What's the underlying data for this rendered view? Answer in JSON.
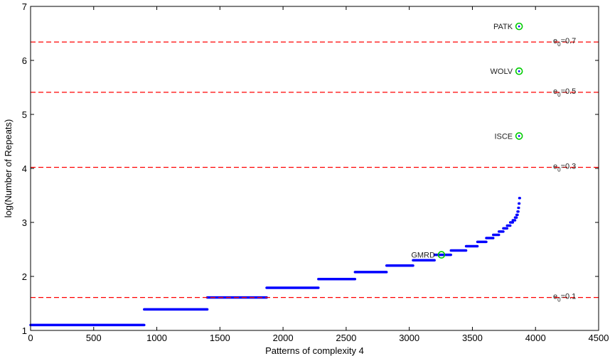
{
  "chart_data": {
    "type": "scatter",
    "xlabel": "Patterns of complexity 4",
    "ylabel": "log(Number of Repeats)",
    "xlim": [
      0,
      4500
    ],
    "ylim": [
      1,
      7
    ],
    "xticks": [
      "0",
      "500",
      "1000",
      "1500",
      "2000",
      "2500",
      "3000",
      "3500",
      "4000",
      "4500"
    ],
    "yticks": [
      "1",
      "2",
      "3",
      "4",
      "5",
      "6",
      "7"
    ],
    "grid": false,
    "colors": {
      "series": "#0000ff",
      "threshold": "#ff0000",
      "highlight": "#00cc00"
    },
    "steps": [
      {
        "x0": 0,
        "x1": 900,
        "y": 1.1
      },
      {
        "x0": 900,
        "x1": 1400,
        "y": 1.39
      },
      {
        "x0": 1400,
        "x1": 1870,
        "y": 1.61
      },
      {
        "x0": 1870,
        "x1": 2280,
        "y": 1.79
      },
      {
        "x0": 2280,
        "x1": 2570,
        "y": 1.95
      },
      {
        "x0": 2570,
        "x1": 2820,
        "y": 2.08
      },
      {
        "x0": 2820,
        "x1": 3030,
        "y": 2.2
      },
      {
        "x0": 3030,
        "x1": 3200,
        "y": 2.3
      },
      {
        "x0": 3200,
        "x1": 3330,
        "y": 2.4
      },
      {
        "x0": 3330,
        "x1": 3450,
        "y": 2.48
      },
      {
        "x0": 3450,
        "x1": 3540,
        "y": 2.56
      },
      {
        "x0": 3540,
        "x1": 3610,
        "y": 2.64
      },
      {
        "x0": 3610,
        "x1": 3665,
        "y": 2.71
      },
      {
        "x0": 3665,
        "x1": 3710,
        "y": 2.77
      },
      {
        "x0": 3710,
        "x1": 3745,
        "y": 2.83
      },
      {
        "x0": 3745,
        "x1": 3775,
        "y": 2.89
      },
      {
        "x0": 3775,
        "x1": 3800,
        "y": 2.94
      },
      {
        "x0": 3800,
        "x1": 3820,
        "y": 3.0
      },
      {
        "x0": 3820,
        "x1": 3838,
        "y": 3.04
      },
      {
        "x0": 3838,
        "x1": 3850,
        "y": 3.09
      },
      {
        "x0": 3850,
        "x1": 3858,
        "y": 3.14
      },
      {
        "x0": 3858,
        "x1": 3864,
        "y": 3.2
      },
      {
        "x0": 3864,
        "x1": 3868,
        "y": 3.27
      },
      {
        "x0": 3868,
        "x1": 3872,
        "y": 3.35
      },
      {
        "x0": 3872,
        "x1": 3876,
        "y": 3.45
      }
    ],
    "thresholds": [
      {
        "y": 1.61,
        "label_base": "e",
        "label_sub": "0",
        "label_rest": "=0.1"
      },
      {
        "y": 4.02,
        "label_base": "e",
        "label_sub": "0",
        "label_rest": "=0.3"
      },
      {
        "y": 5.41,
        "label_base": "e",
        "label_sub": "0",
        "label_rest": "=0.5"
      },
      {
        "y": 6.34,
        "label_base": "e",
        "label_sub": "0",
        "label_rest": "=0.7"
      }
    ],
    "highlights": [
      {
        "label": "PATK",
        "x": 3870,
        "y": 6.63
      },
      {
        "label": "WOLV",
        "x": 3870,
        "y": 5.8
      },
      {
        "label": "ISCE",
        "x": 3870,
        "y": 4.6
      },
      {
        "label": "GMRD",
        "x": 3255,
        "y": 2.4
      }
    ]
  }
}
